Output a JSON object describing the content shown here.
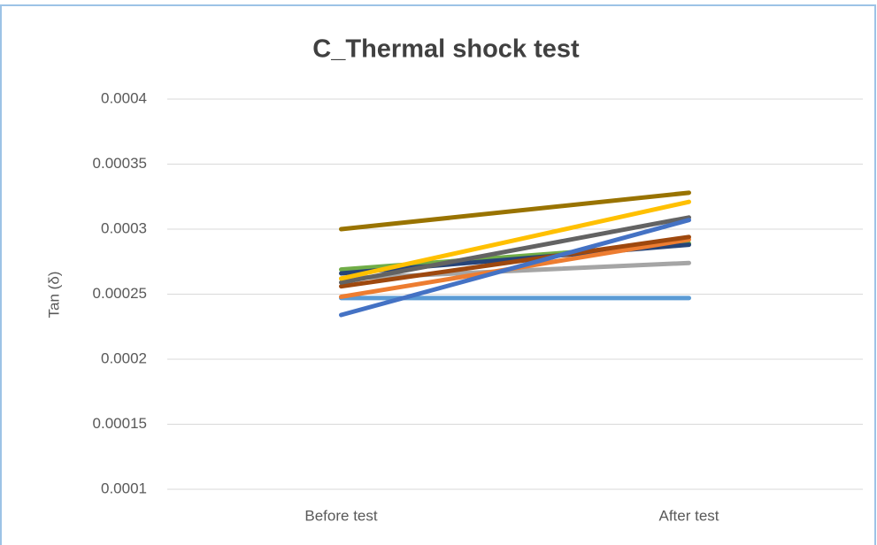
{
  "chart_data": {
    "type": "line",
    "title": "C_Thermal shock test",
    "y_label": "Tan (δ)",
    "categories": [
      "Before test",
      "After test"
    ],
    "series": [
      {
        "color": "#5b9bd5",
        "values": [
          0.000247,
          0.000247
        ]
      },
      {
        "color": "#a5a5a5",
        "values": [
          0.000262,
          0.000274
        ]
      },
      {
        "color": "#70ad47",
        "values": [
          0.000269,
          0.000289
        ]
      },
      {
        "color": "#264478",
        "values": [
          0.000266,
          0.000288
        ]
      },
      {
        "color": "#ed7d31",
        "values": [
          0.000248,
          0.000292
        ]
      },
      {
        "color": "#9e480e",
        "values": [
          0.000256,
          0.000294
        ]
      },
      {
        "color": "#636363",
        "values": [
          0.000259,
          0.000309
        ]
      },
      {
        "color": "#ffc000",
        "values": [
          0.000262,
          0.000321
        ]
      },
      {
        "color": "#4472c4",
        "values": [
          0.000234,
          0.000307
        ]
      },
      {
        "color": "#997300",
        "values": [
          0.0003,
          0.000328
        ]
      }
    ],
    "ylim": [
      0.0001,
      0.0004
    ],
    "yticks": [
      0.0001,
      0.00015,
      0.0002,
      0.00025,
      0.0003,
      0.00035,
      0.0004
    ],
    "grid": true
  }
}
